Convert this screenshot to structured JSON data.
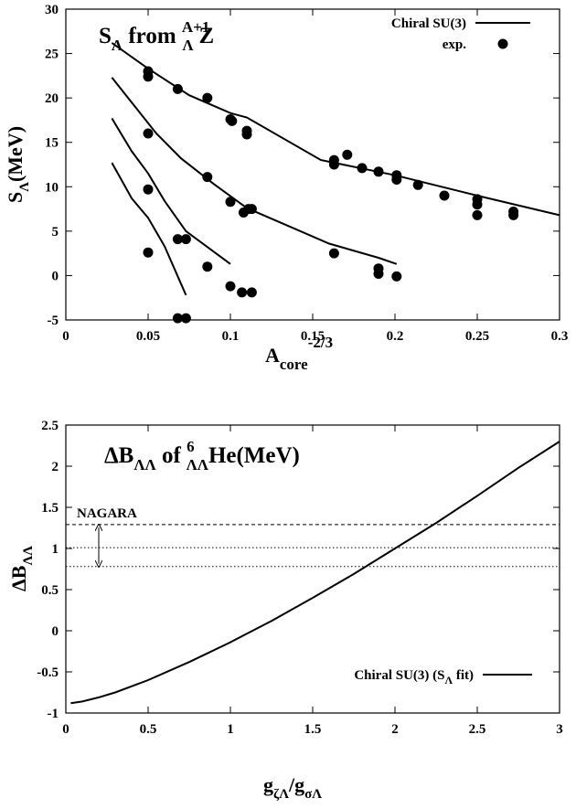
{
  "chart_data": [
    {
      "type": "scatter",
      "title": {
        "main": "S",
        "sub": "Λ",
        "mid": " from ",
        "sup": "A+1",
        "sub2": "Λ",
        "end": "Z"
      },
      "xlabel": {
        "main": "A",
        "sub": "core",
        "sup": "-2/3"
      },
      "ylabel": {
        "main": "S",
        "sub": "Λ",
        "end": "(MeV)"
      },
      "xlim": [
        0,
        0.3
      ],
      "ylim": [
        -5,
        30
      ],
      "xticks": [
        "0",
        "0.05",
        "0.1",
        "0.15",
        "0.2",
        "0.25",
        "0.3"
      ],
      "yticks": [
        "-5",
        "0",
        "5",
        "10",
        "15",
        "20",
        "25",
        "30"
      ],
      "grid": false,
      "legend_position": "top-right",
      "legend": [
        "Chiral SU(3)",
        "exp."
      ],
      "lines": [
        {
          "name": "Chiral SU(3)",
          "x": [
            0.028,
            0.05,
            0.075,
            0.1,
            0.11,
            0.155,
            0.2,
            0.25,
            0.3
          ],
          "y": [
            26.2,
            23.3,
            20.3,
            18.3,
            17.8,
            13.0,
            11.3,
            9.0,
            6.8
          ]
        },
        {
          "name": "",
          "x": [
            0.028,
            0.04,
            0.055,
            0.07,
            0.09,
            0.11,
            0.16,
            0.19,
            0.201
          ],
          "y": [
            22.3,
            19.5,
            16.0,
            13.2,
            10.3,
            7.6,
            3.6,
            2.0,
            1.3
          ]
        },
        {
          "name": "",
          "x": [
            0.028,
            0.04,
            0.05,
            0.06,
            0.073,
            0.1
          ],
          "y": [
            17.7,
            14.0,
            11.5,
            8.4,
            5.0,
            1.3
          ]
        },
        {
          "name": "",
          "x": [
            0.028,
            0.04,
            0.05,
            0.06,
            0.073
          ],
          "y": [
            12.7,
            8.7,
            6.5,
            3.3,
            -2.2
          ]
        }
      ],
      "points": [
        {
          "x": 0.05,
          "y": 23.0
        },
        {
          "x": 0.05,
          "y": 22.4
        },
        {
          "x": 0.068,
          "y": 21.0
        },
        {
          "x": 0.086,
          "y": 20.0
        },
        {
          "x": 0.1,
          "y": 17.6
        },
        {
          "x": 0.101,
          "y": 17.4
        },
        {
          "x": 0.11,
          "y": 16.3
        },
        {
          "x": 0.11,
          "y": 15.9
        },
        {
          "x": 0.163,
          "y": 13.0
        },
        {
          "x": 0.163,
          "y": 12.5
        },
        {
          "x": 0.171,
          "y": 13.6
        },
        {
          "x": 0.18,
          "y": 12.1
        },
        {
          "x": 0.19,
          "y": 11.7
        },
        {
          "x": 0.201,
          "y": 11.3
        },
        {
          "x": 0.201,
          "y": 10.8
        },
        {
          "x": 0.214,
          "y": 10.2
        },
        {
          "x": 0.23,
          "y": 9.0
        },
        {
          "x": 0.25,
          "y": 8.6
        },
        {
          "x": 0.25,
          "y": 8.0
        },
        {
          "x": 0.25,
          "y": 6.8
        },
        {
          "x": 0.272,
          "y": 7.2
        },
        {
          "x": 0.272,
          "y": 6.8
        },
        {
          "x": 0.05,
          "y": 16.0
        },
        {
          "x": 0.086,
          "y": 11.1
        },
        {
          "x": 0.1,
          "y": 8.3
        },
        {
          "x": 0.108,
          "y": 7.1
        },
        {
          "x": 0.111,
          "y": 7.5
        },
        {
          "x": 0.113,
          "y": 7.5
        },
        {
          "x": 0.163,
          "y": 2.5
        },
        {
          "x": 0.19,
          "y": 0.8
        },
        {
          "x": 0.19,
          "y": 0.2
        },
        {
          "x": 0.201,
          "y": -0.1
        },
        {
          "x": 0.05,
          "y": 9.7
        },
        {
          "x": 0.068,
          "y": 4.1
        },
        {
          "x": 0.073,
          "y": 4.1
        },
        {
          "x": 0.086,
          "y": 1.0
        },
        {
          "x": 0.1,
          "y": -1.2
        },
        {
          "x": 0.107,
          "y": -1.9
        },
        {
          "x": 0.113,
          "y": -1.9
        },
        {
          "x": 0.05,
          "y": 2.6
        },
        {
          "x": 0.068,
          "y": -4.8
        },
        {
          "x": 0.073,
          "y": -4.8
        }
      ]
    },
    {
      "type": "line",
      "title": {
        "main": "ΔB",
        "sub": "ΛΛ",
        "mid": " of ",
        "sup": "6",
        "sub2": "ΛΛ",
        "end": "He(MeV)"
      },
      "xlabel": {
        "main": "g",
        "sub": "ζΛ",
        "mid": "/g",
        "sub2": "σΛ"
      },
      "ylabel": {
        "main": "ΔB",
        "sub": "ΛΛ"
      },
      "xlim": [
        0,
        3
      ],
      "ylim": [
        -1,
        2.5
      ],
      "xticks": [
        "0",
        "0.5",
        "1",
        "1.5",
        "2",
        "2.5",
        "3"
      ],
      "yticks": [
        "-1",
        "-0.5",
        "0",
        "0.5",
        "1",
        "1.5",
        "2",
        "2.5"
      ],
      "grid": false,
      "legend_position": "bottom-right",
      "legend": {
        "main": "Chiral SU(3) (S",
        "sub": "Λ",
        "end": " fit)"
      },
      "series": [
        {
          "name": "Chiral SU(3) (SΛ fit)",
          "x": [
            0.03,
            0.1,
            0.2,
            0.3,
            0.5,
            0.75,
            1.0,
            1.25,
            1.5,
            1.75,
            2.0,
            2.25,
            2.5,
            2.75,
            3.0
          ],
          "y": [
            -0.88,
            -0.86,
            -0.81,
            -0.75,
            -0.6,
            -0.38,
            -0.14,
            0.12,
            0.4,
            0.69,
            1.0,
            1.31,
            1.64,
            1.98,
            2.3
          ]
        }
      ],
      "reference_lines": [
        {
          "y": 1.29,
          "style": "dashed"
        },
        {
          "y": 1.01,
          "style": "dotted"
        },
        {
          "y": 0.78,
          "style": "dotted"
        }
      ],
      "annotation": {
        "text": "NAGARA",
        "x": 0.2,
        "y_top": 1.29,
        "y_bottom": 0.78
      }
    }
  ]
}
